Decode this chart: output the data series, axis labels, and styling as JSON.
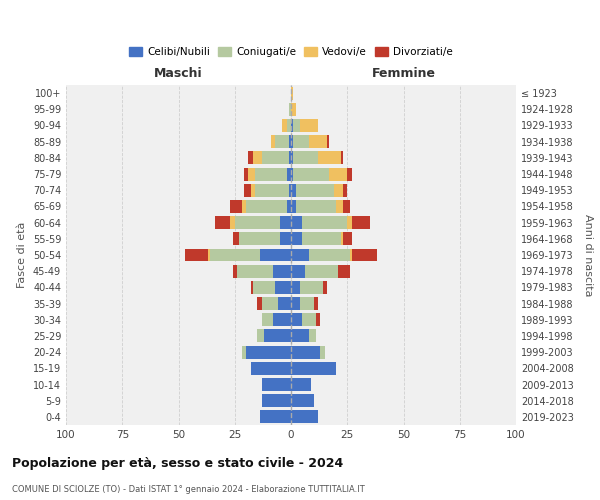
{
  "age_groups": [
    "0-4",
    "5-9",
    "10-14",
    "15-19",
    "20-24",
    "25-29",
    "30-34",
    "35-39",
    "40-44",
    "45-49",
    "50-54",
    "55-59",
    "60-64",
    "65-69",
    "70-74",
    "75-79",
    "80-84",
    "85-89",
    "90-94",
    "95-99",
    "100+"
  ],
  "birth_years": [
    "2019-2023",
    "2014-2018",
    "2009-2013",
    "2004-2008",
    "1999-2003",
    "1994-1998",
    "1989-1993",
    "1984-1988",
    "1979-1983",
    "1974-1978",
    "1969-1973",
    "1964-1968",
    "1959-1963",
    "1954-1958",
    "1949-1953",
    "1944-1948",
    "1939-1943",
    "1934-1938",
    "1929-1933",
    "1924-1928",
    "≤ 1923"
  ],
  "male_celibi": [
    14,
    13,
    13,
    18,
    20,
    12,
    8,
    6,
    7,
    8,
    14,
    5,
    5,
    2,
    1,
    2,
    1,
    1,
    0,
    0,
    0
  ],
  "male_coniugati": [
    0,
    0,
    0,
    0,
    2,
    3,
    5,
    7,
    10,
    16,
    22,
    18,
    20,
    18,
    15,
    14,
    12,
    6,
    2,
    1,
    0
  ],
  "male_vedovi": [
    0,
    0,
    0,
    0,
    0,
    0,
    0,
    0,
    0,
    0,
    1,
    0,
    2,
    2,
    2,
    3,
    4,
    2,
    2,
    0,
    0
  ],
  "male_divorziati": [
    0,
    0,
    0,
    0,
    0,
    0,
    0,
    2,
    1,
    2,
    10,
    3,
    7,
    5,
    3,
    2,
    2,
    0,
    0,
    0,
    0
  ],
  "female_celibi": [
    12,
    10,
    9,
    20,
    13,
    8,
    5,
    4,
    4,
    6,
    8,
    5,
    5,
    2,
    2,
    1,
    1,
    1,
    1,
    0,
    0
  ],
  "female_coniugati": [
    0,
    0,
    0,
    0,
    2,
    3,
    6,
    6,
    10,
    15,
    18,
    17,
    20,
    18,
    17,
    16,
    11,
    7,
    3,
    0,
    0
  ],
  "female_vedovi": [
    0,
    0,
    0,
    0,
    0,
    0,
    0,
    0,
    0,
    0,
    1,
    1,
    2,
    3,
    4,
    8,
    10,
    8,
    8,
    2,
    1
  ],
  "female_divorziati": [
    0,
    0,
    0,
    0,
    0,
    0,
    2,
    2,
    2,
    5,
    11,
    4,
    8,
    3,
    2,
    2,
    1,
    1,
    0,
    0,
    0
  ],
  "color_celibi": "#4472c4",
  "color_coniugati": "#b5c9a0",
  "color_vedovi": "#f0c060",
  "color_divorziati": "#c0392b",
  "title": "Popolazione per età, sesso e stato civile - 2024",
  "subtitle": "COMUNE DI SCIOLZE (TO) - Dati ISTAT 1° gennaio 2024 - Elaborazione TUTTITALIA.IT",
  "xlabel_left": "Maschi",
  "xlabel_right": "Femmine",
  "ylabel_left": "Fasce di età",
  "ylabel_right": "Anni di nascita",
  "xlim": 100,
  "bg_color": "#f0f0f0",
  "grid_color": "#cccccc"
}
